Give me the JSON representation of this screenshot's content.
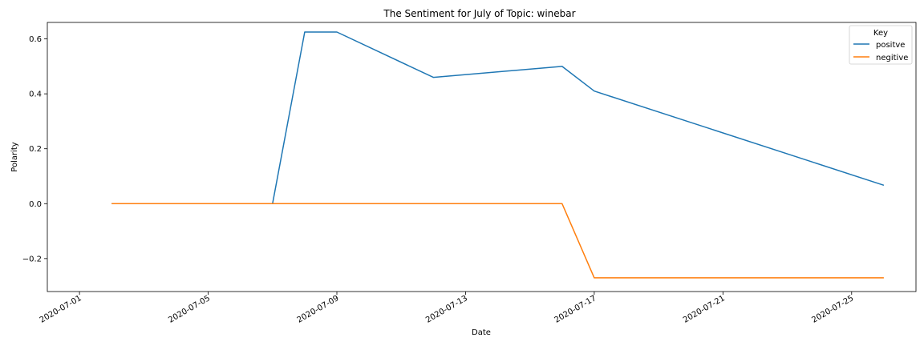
{
  "chart_data": {
    "type": "line",
    "title": "The Sentiment for July of Topic: winebar",
    "xlabel": "Date",
    "ylabel": "Polarity",
    "xlim": [
      "2020-06-30",
      "2020-07-27"
    ],
    "ylim": [
      -0.32,
      0.66
    ],
    "x_ticks": [
      "2020-07-01",
      "2020-07-05",
      "2020-07-09",
      "2020-07-13",
      "2020-07-17",
      "2020-07-21",
      "2020-07-25"
    ],
    "y_ticks": [
      -0.2,
      0.0,
      0.2,
      0.4,
      0.6
    ],
    "y_tick_labels": [
      "−0.2",
      "0.0",
      "0.2",
      "0.4",
      "0.6"
    ],
    "legend": {
      "title": "Key",
      "placement": "top-right"
    },
    "grid": false,
    "series": [
      {
        "name": "positve",
        "color": "#1f77b4",
        "points": [
          {
            "x": "2020-07-02",
            "y": 0.0
          },
          {
            "x": "2020-07-07",
            "y": 0.0
          },
          {
            "x": "2020-07-08",
            "y": 0.625
          },
          {
            "x": "2020-07-09",
            "y": 0.625
          },
          {
            "x": "2020-07-12",
            "y": 0.46
          },
          {
            "x": "2020-07-16",
            "y": 0.5
          },
          {
            "x": "2020-07-17",
            "y": 0.41
          },
          {
            "x": "2020-07-26",
            "y": 0.067
          }
        ]
      },
      {
        "name": "negitive",
        "color": "#ff7f0e",
        "points": [
          {
            "x": "2020-07-02",
            "y": 0.0
          },
          {
            "x": "2020-07-16",
            "y": 0.0
          },
          {
            "x": "2020-07-17",
            "y": -0.27
          },
          {
            "x": "2020-07-26",
            "y": -0.27
          }
        ]
      }
    ]
  }
}
